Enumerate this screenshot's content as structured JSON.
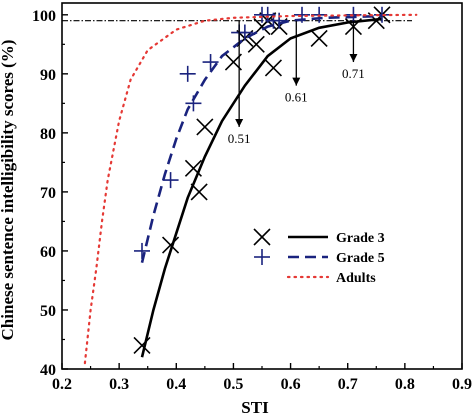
{
  "chart_data": {
    "type": "scatter",
    "xlabel": "STI",
    "ylabel": "Chinese sentence intelligibility scores (%)",
    "xlim": [
      0.2,
      0.9
    ],
    "ylim": [
      40,
      102
    ],
    "x_ticks": [
      "0.2",
      "0.3",
      "0.4",
      "0.5",
      "0.6",
      "0.7",
      "0.8",
      "0.9"
    ],
    "y_ticks": [
      "40",
      "50",
      "60",
      "70",
      "80",
      "90",
      "100"
    ],
    "grid": false,
    "legend_position": "lower-right",
    "reference_line_y": 99,
    "colors": {
      "grade3": "#000000",
      "grade5": "#1a237e",
      "adults": "#e53935"
    },
    "series": [
      {
        "name": "Grade 3",
        "marker": "x",
        "line_style": "solid",
        "points": [
          {
            "x": 0.34,
            "y": 44
          },
          {
            "x": 0.39,
            "y": 61
          },
          {
            "x": 0.43,
            "y": 74
          },
          {
            "x": 0.44,
            "y": 70
          },
          {
            "x": 0.45,
            "y": 81
          },
          {
            "x": 0.5,
            "y": 92
          },
          {
            "x": 0.52,
            "y": 96
          },
          {
            "x": 0.54,
            "y": 95
          },
          {
            "x": 0.55,
            "y": 98
          },
          {
            "x": 0.56,
            "y": 99
          },
          {
            "x": 0.57,
            "y": 91
          },
          {
            "x": 0.58,
            "y": 98
          },
          {
            "x": 0.65,
            "y": 96
          },
          {
            "x": 0.71,
            "y": 98
          },
          {
            "x": 0.75,
            "y": 99
          },
          {
            "x": 0.76,
            "y": 100
          }
        ],
        "curve": [
          {
            "x": 0.34,
            "y": 42
          },
          {
            "x": 0.36,
            "y": 50
          },
          {
            "x": 0.38,
            "y": 57
          },
          {
            "x": 0.4,
            "y": 63
          },
          {
            "x": 0.42,
            "y": 69
          },
          {
            "x": 0.45,
            "y": 76
          },
          {
            "x": 0.48,
            "y": 82
          },
          {
            "x": 0.52,
            "y": 88
          },
          {
            "x": 0.56,
            "y": 93
          },
          {
            "x": 0.6,
            "y": 96
          },
          {
            "x": 0.65,
            "y": 97.8
          },
          {
            "x": 0.7,
            "y": 98.7
          },
          {
            "x": 0.76,
            "y": 99.3
          }
        ]
      },
      {
        "name": "Grade 5",
        "marker": "+",
        "line_style": "dashed",
        "points": [
          {
            "x": 0.34,
            "y": 60
          },
          {
            "x": 0.39,
            "y": 72
          },
          {
            "x": 0.42,
            "y": 90
          },
          {
            "x": 0.43,
            "y": 85
          },
          {
            "x": 0.46,
            "y": 92
          },
          {
            "x": 0.51,
            "y": 97
          },
          {
            "x": 0.52,
            "y": 97
          },
          {
            "x": 0.55,
            "y": 100
          },
          {
            "x": 0.56,
            "y": 100
          },
          {
            "x": 0.57,
            "y": 99
          },
          {
            "x": 0.58,
            "y": 99
          },
          {
            "x": 0.62,
            "y": 100
          },
          {
            "x": 0.65,
            "y": 100
          },
          {
            "x": 0.71,
            "y": 100
          },
          {
            "x": 0.76,
            "y": 100
          }
        ],
        "curve": [
          {
            "x": 0.34,
            "y": 58
          },
          {
            "x": 0.36,
            "y": 66
          },
          {
            "x": 0.38,
            "y": 73
          },
          {
            "x": 0.4,
            "y": 79
          },
          {
            "x": 0.42,
            "y": 84
          },
          {
            "x": 0.45,
            "y": 89
          },
          {
            "x": 0.48,
            "y": 93
          },
          {
            "x": 0.52,
            "y": 96
          },
          {
            "x": 0.56,
            "y": 98
          },
          {
            "x": 0.6,
            "y": 99
          },
          {
            "x": 0.66,
            "y": 99.5
          },
          {
            "x": 0.76,
            "y": 99.8
          }
        ]
      },
      {
        "name": "Adults",
        "marker": "none",
        "line_style": "dotted",
        "curve": [
          {
            "x": 0.24,
            "y": 41
          },
          {
            "x": 0.25,
            "y": 50
          },
          {
            "x": 0.26,
            "y": 57
          },
          {
            "x": 0.27,
            "y": 65
          },
          {
            "x": 0.28,
            "y": 72
          },
          {
            "x": 0.29,
            "y": 77
          },
          {
            "x": 0.3,
            "y": 82
          },
          {
            "x": 0.32,
            "y": 89
          },
          {
            "x": 0.35,
            "y": 94
          },
          {
            "x": 0.4,
            "y": 97.5
          },
          {
            "x": 0.45,
            "y": 99
          },
          {
            "x": 0.5,
            "y": 99.5
          },
          {
            "x": 0.6,
            "y": 99.8
          },
          {
            "x": 0.7,
            "y": 99.9
          },
          {
            "x": 0.82,
            "y": 100
          }
        ]
      }
    ],
    "annotations": [
      {
        "text": "0.51",
        "arrow_x": 0.51,
        "arrow_y_top": 99,
        "arrow_y_bottom": 81
      },
      {
        "text": "0.61",
        "arrow_x": 0.61,
        "arrow_y_top": 99,
        "arrow_y_bottom": 88
      },
      {
        "text": "0.71",
        "arrow_x": 0.71,
        "arrow_y_top": 99,
        "arrow_y_bottom": 92
      }
    ]
  }
}
